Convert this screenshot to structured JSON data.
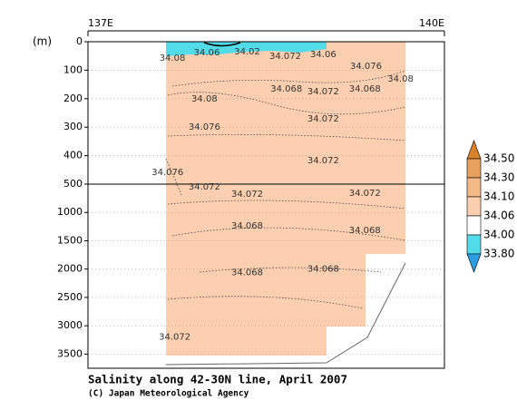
{
  "chart_data": {
    "type": "contour",
    "title": "Salinity along 42-30N line, April 2007",
    "credit": "(C) Japan Meteorological Agency",
    "y_label": "(m)",
    "xlim": [
      137,
      140
    ],
    "xticks": [
      {
        "value": 137,
        "label": "137E"
      },
      {
        "value": 140,
        "label": "140E"
      }
    ],
    "ylim": [
      0,
      3750
    ],
    "y_break": 500,
    "yticks": [
      0,
      100,
      200,
      300,
      400,
      500,
      1000,
      1500,
      2000,
      2500,
      3000,
      3500
    ],
    "grid": true,
    "colorbar": {
      "ticks": [
        {
          "value": 34.5,
          "label": "34.50"
        },
        {
          "value": 34.3,
          "label": "34.30"
        },
        {
          "value": 34.1,
          "label": "34.10"
        },
        {
          "value": 34.06,
          "label": "34.06"
        },
        {
          "value": 34.0,
          "label": "34.00"
        },
        {
          "value": 33.8,
          "label": "33.80"
        }
      ],
      "colors": [
        "#d9822b",
        "#e8a05e",
        "#f3b988",
        "#fbcfb0",
        "#ffffff",
        "#52dbe8",
        "#2b9de0"
      ]
    },
    "contour_labels": [
      {
        "x": 137.71,
        "y": 57,
        "value": 34.08
      },
      {
        "x": 138.0,
        "y": 38,
        "value": 34.06
      },
      {
        "x": 138.34,
        "y": 35,
        "value": 34.02
      },
      {
        "x": 138.66,
        "y": 51,
        "value": 34.072
      },
      {
        "x": 138.98,
        "y": 45,
        "value": 34.06
      },
      {
        "x": 139.34,
        "y": 86,
        "value": 34.076
      },
      {
        "x": 139.63,
        "y": 131,
        "value": 34.08
      },
      {
        "x": 138.67,
        "y": 166,
        "value": 34.068
      },
      {
        "x": 138.98,
        "y": 175,
        "value": 34.072
      },
      {
        "x": 139.33,
        "y": 166,
        "value": 34.068
      },
      {
        "x": 137.98,
        "y": 201,
        "value": 34.08
      },
      {
        "x": 138.98,
        "y": 271,
        "value": 34.072
      },
      {
        "x": 137.98,
        "y": 299,
        "value": 34.076
      },
      {
        "x": 138.98,
        "y": 417,
        "value": 34.072
      },
      {
        "x": 137.67,
        "y": 459,
        "value": 34.076
      },
      {
        "x": 137.98,
        "y": 548,
        "value": 34.072
      },
      {
        "x": 138.34,
        "y": 676,
        "value": 34.072
      },
      {
        "x": 139.33,
        "y": 660,
        "value": 34.072
      },
      {
        "x": 138.34,
        "y": 1234,
        "value": 34.068
      },
      {
        "x": 139.33,
        "y": 1314,
        "value": 34.068
      },
      {
        "x": 138.34,
        "y": 2064,
        "value": 34.068
      },
      {
        "x": 138.98,
        "y": 2000,
        "value": 34.068
      },
      {
        "x": 137.73,
        "y": 3197,
        "value": 34.072
      }
    ]
  }
}
